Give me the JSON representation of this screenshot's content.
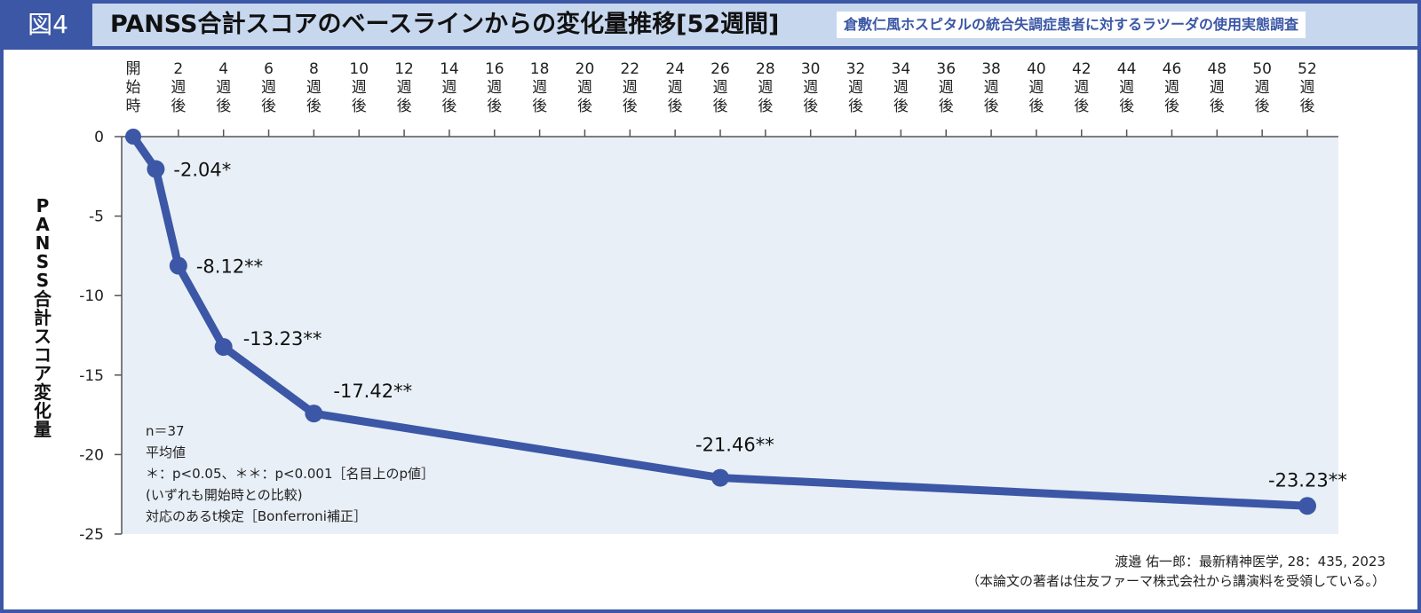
{
  "header": {
    "figure_label": "図4",
    "title": "PANSS合計スコアのベースラインからの変化量推移[52週間]",
    "subtitle": "倉敷仁風ホスピタルの統合失調症患者に対するラツーダの使用実態調査"
  },
  "colors": {
    "line": "#3b57a6",
    "plot_bg": "#e8eff6",
    "header_bg": "#c7d7ee"
  },
  "chart_data": {
    "type": "line",
    "ylabel": "PANSS合計スコア変化量",
    "ylim": [
      -25,
      0
    ],
    "yticks": [
      0,
      -5,
      -10,
      -15,
      -20,
      -25
    ],
    "xlim": [
      0,
      52
    ],
    "xticks": [
      {
        "v": 0,
        "label": "開始時"
      },
      {
        "v": 2,
        "label": "2週後"
      },
      {
        "v": 4,
        "label": "4週後"
      },
      {
        "v": 6,
        "label": "6週後"
      },
      {
        "v": 8,
        "label": "8週後"
      },
      {
        "v": 10,
        "label": "10週後"
      },
      {
        "v": 12,
        "label": "12週後"
      },
      {
        "v": 14,
        "label": "14週後"
      },
      {
        "v": 16,
        "label": "16週後"
      },
      {
        "v": 18,
        "label": "18週後"
      },
      {
        "v": 20,
        "label": "20週後"
      },
      {
        "v": 22,
        "label": "22週後"
      },
      {
        "v": 24,
        "label": "24週後"
      },
      {
        "v": 26,
        "label": "26週後"
      },
      {
        "v": 28,
        "label": "28週後"
      },
      {
        "v": 30,
        "label": "30週後"
      },
      {
        "v": 32,
        "label": "32週後"
      },
      {
        "v": 34,
        "label": "34週後"
      },
      {
        "v": 36,
        "label": "36週後"
      },
      {
        "v": 38,
        "label": "38週後"
      },
      {
        "v": 40,
        "label": "40週後"
      },
      {
        "v": 42,
        "label": "42週後"
      },
      {
        "v": 44,
        "label": "44週後"
      },
      {
        "v": 46,
        "label": "46週後"
      },
      {
        "v": 48,
        "label": "48週後"
      },
      {
        "v": 50,
        "label": "50週後"
      },
      {
        "v": 52,
        "label": "52週後"
      }
    ],
    "x": [
      0,
      1,
      2,
      4,
      8,
      26,
      52
    ],
    "y": [
      0,
      -2.04,
      -8.12,
      -13.23,
      -17.42,
      -21.46,
      -23.23
    ],
    "labels": [
      "",
      "-2.04*",
      "-8.12**",
      "-13.23**",
      "-17.42**",
      "-21.46**",
      "-23.23**"
    ]
  },
  "notes": [
    "n＝37",
    "平均値",
    "＊：p<0.05、＊＊：p<0.001［名目上のp値］",
    "(いずれも開始時との比較)",
    "対応のあるt検定［Bonferroni補正］"
  ],
  "source": [
    "渡邉 佑一郎：最新精神医学, 28：435, 2023",
    "（本論文の著者は住友ファーマ株式会社から講演料を受領している。）"
  ]
}
